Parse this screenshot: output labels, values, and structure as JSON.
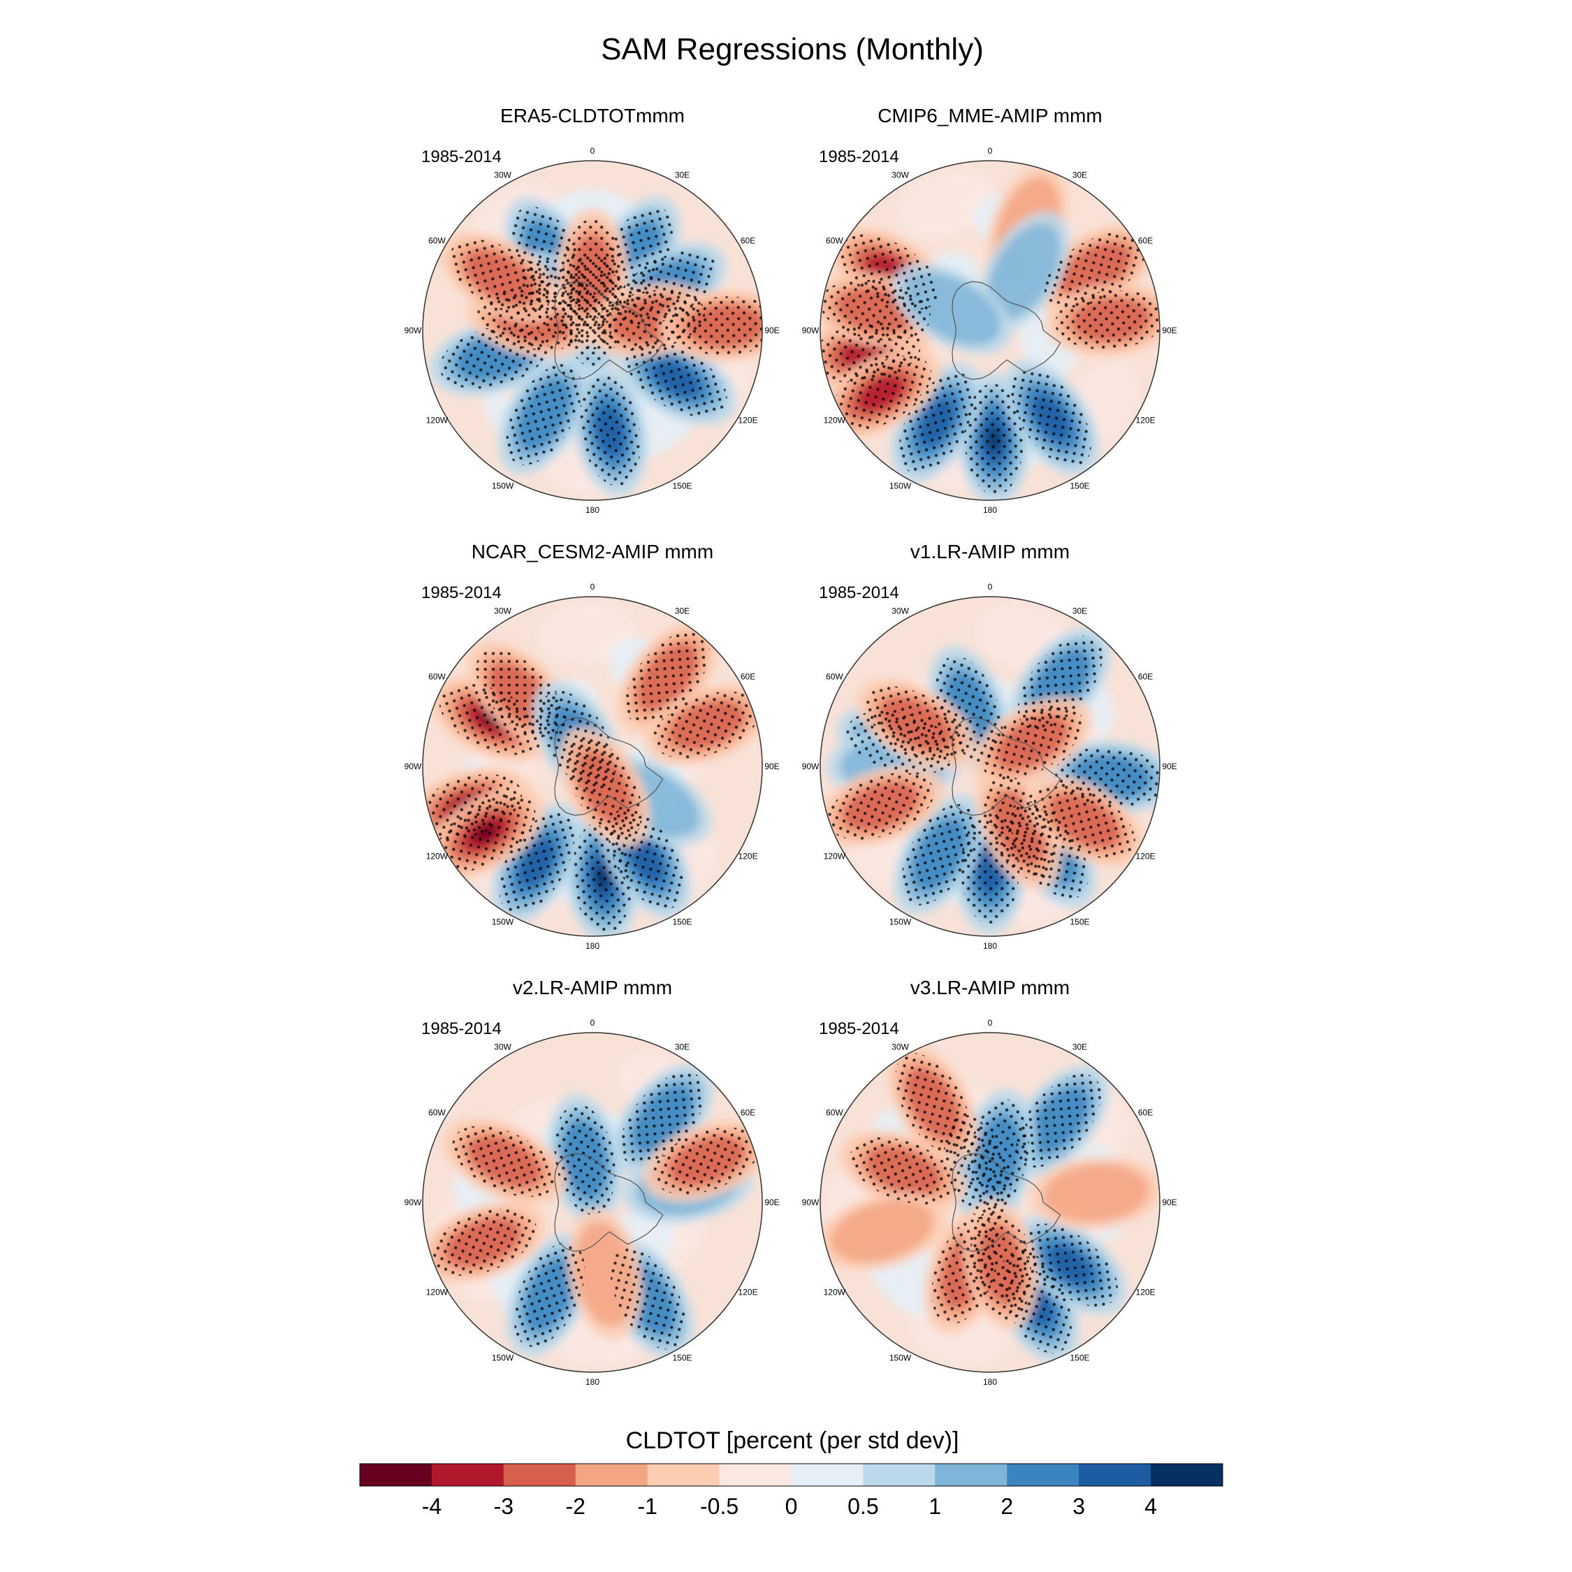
{
  "chart_data": {
    "type": "heatmap",
    "title": "SAM Regressions (Monthly)",
    "projection": "south-polar-stereographic",
    "longitude_labels": [
      "0",
      "30E",
      "60E",
      "90E",
      "120E",
      "150E",
      "180",
      "150W",
      "120W",
      "90W",
      "60W",
      "30W"
    ],
    "panels": [
      {
        "title": "ERA5-CLDTOTmmm",
        "period": "1985-2014",
        "anomalies": [
          {
            "lon": 120,
            "lat": -50,
            "sign": "positive",
            "magnitude": 3
          },
          {
            "lon": 170,
            "lat": -48,
            "sign": "positive",
            "magnitude": 3
          },
          {
            "lon": -150,
            "lat": -50,
            "sign": "positive",
            "magnitude": 2
          },
          {
            "lon": -105,
            "lat": -48,
            "sign": "positive",
            "magnitude": 2
          },
          {
            "lon": 30,
            "lat": -55,
            "sign": "positive",
            "magnitude": 2
          },
          {
            "lon": 60,
            "lat": -55,
            "sign": "positive",
            "magnitude": 2
          },
          {
            "lon": -30,
            "lat": -55,
            "sign": "positive",
            "magnitude": 2
          },
          {
            "lon": 0,
            "lat": -82,
            "sign": "positive",
            "magnitude": 3
          },
          {
            "lon": -45,
            "lat": -75,
            "sign": "positive",
            "magnitude": 4
          },
          {
            "lon": -80,
            "lat": -65,
            "sign": "negative",
            "magnitude": 2
          },
          {
            "lon": 0,
            "lat": -67,
            "sign": "negative",
            "magnitude": 2
          },
          {
            "lon": 80,
            "lat": -66,
            "sign": "negative",
            "magnitude": 2
          },
          {
            "lon": -60,
            "lat": -46,
            "sign": "negative",
            "magnitude": 2
          },
          {
            "lon": 88,
            "lat": -35,
            "sign": "negative",
            "magnitude": 2
          }
        ]
      },
      {
        "title": "CMIP6_MME-AMIP  mmm",
        "period": "1985-2014",
        "anomalies": [
          {
            "lon": 178,
            "lat": -45,
            "sign": "positive",
            "magnitude": 4
          },
          {
            "lon": 145,
            "lat": -46,
            "sign": "positive",
            "magnitude": 3
          },
          {
            "lon": -150,
            "lat": -46,
            "sign": "positive",
            "magnitude": 3
          },
          {
            "lon": -60,
            "lat": -42,
            "sign": "negative",
            "magnitude": 3
          },
          {
            "lon": -100,
            "lat": -38,
            "sign": "negative",
            "magnitude": 3
          },
          {
            "lon": -120,
            "lat": -38,
            "sign": "negative",
            "magnitude": 3
          },
          {
            "lon": -80,
            "lat": -42,
            "sign": "negative",
            "magnitude": 2
          },
          {
            "lon": 60,
            "lat": -40,
            "sign": "negative",
            "magnitude": 2
          },
          {
            "lon": 85,
            "lat": -40,
            "sign": "negative",
            "magnitude": 2
          },
          {
            "lon": 20,
            "lat": -45,
            "sign": "negative",
            "magnitude": 1
          },
          {
            "lon": 30,
            "lat": -62,
            "sign": "positive",
            "magnitude": 1
          },
          {
            "lon": -60,
            "lat": -72,
            "sign": "positive",
            "magnitude": 1
          }
        ]
      },
      {
        "title": "NCAR_CESM2-AMIP  mmm",
        "period": "1985-2014",
        "anomalies": [
          {
            "lon": 175,
            "lat": -44,
            "sign": "positive",
            "magnitude": 4
          },
          {
            "lon": 150,
            "lat": -46,
            "sign": "positive",
            "magnitude": 3
          },
          {
            "lon": -150,
            "lat": -44,
            "sign": "positive",
            "magnitude": 3
          },
          {
            "lon": -108,
            "lat": -36,
            "sign": "negative",
            "magnitude": 4
          },
          {
            "lon": -122,
            "lat": -38,
            "sign": "negative",
            "magnitude": 4
          },
          {
            "lon": -65,
            "lat": -44,
            "sign": "negative",
            "magnitude": 4
          },
          {
            "lon": -45,
            "lat": -48,
            "sign": "negative",
            "magnitude": 2
          },
          {
            "lon": 40,
            "lat": -42,
            "sign": "negative",
            "magnitude": 2
          },
          {
            "lon": 70,
            "lat": -40,
            "sign": "negative",
            "magnitude": 2
          },
          {
            "lon": 120,
            "lat": -62,
            "sign": "positive",
            "magnitude": 1
          },
          {
            "lon": -30,
            "lat": -78,
            "sign": "positive",
            "magnitude": 2
          },
          {
            "lon": 150,
            "lat": -80,
            "sign": "negative",
            "magnitude": 2
          }
        ]
      },
      {
        "title": "v1.LR-AMIP  mmm",
        "period": "1985-2014",
        "anomalies": [
          {
            "lon": 180,
            "lat": -48,
            "sign": "positive",
            "magnitude": 3
          },
          {
            "lon": 145,
            "lat": -48,
            "sign": "positive",
            "magnitude": 2
          },
          {
            "lon": -150,
            "lat": -48,
            "sign": "positive",
            "magnitude": 2
          },
          {
            "lon": 40,
            "lat": -45,
            "sign": "positive",
            "magnitude": 2
          },
          {
            "lon": 95,
            "lat": -40,
            "sign": "positive",
            "magnitude": 2
          },
          {
            "lon": -75,
            "lat": -52,
            "sign": "positive",
            "magnitude": 2
          },
          {
            "lon": -90,
            "lat": -50,
            "sign": "positive",
            "magnitude": 1
          },
          {
            "lon": -20,
            "lat": -65,
            "sign": "positive",
            "magnitude": 2
          },
          {
            "lon": -60,
            "lat": -55,
            "sign": "negative",
            "magnitude": 2
          },
          {
            "lon": -110,
            "lat": -42,
            "sign": "negative",
            "magnitude": 2
          },
          {
            "lon": 155,
            "lat": -62,
            "sign": "negative",
            "magnitude": 2
          },
          {
            "lon": 60,
            "lat": -70,
            "sign": "negative",
            "magnitude": 2
          },
          {
            "lon": 120,
            "lat": -45,
            "sign": "negative",
            "magnitude": 2
          }
        ]
      },
      {
        "title": "v2.LR-AMIP  mmm",
        "period": "1985-2014",
        "anomalies": [
          {
            "lon": 150,
            "lat": -44,
            "sign": "positive",
            "magnitude": 2
          },
          {
            "lon": -155,
            "lat": -48,
            "sign": "positive",
            "magnitude": 2
          },
          {
            "lon": 40,
            "lat": -45,
            "sign": "positive",
            "magnitude": 2
          },
          {
            "lon": 80,
            "lat": -50,
            "sign": "positive",
            "magnitude": 1
          },
          {
            "lon": -10,
            "lat": -72,
            "sign": "positive",
            "magnitude": 2
          },
          {
            "lon": -65,
            "lat": -50,
            "sign": "negative",
            "magnitude": 2
          },
          {
            "lon": -110,
            "lat": -42,
            "sign": "negative",
            "magnitude": 2
          },
          {
            "lon": 170,
            "lat": -60,
            "sign": "negative",
            "magnitude": 1
          },
          {
            "lon": 70,
            "lat": -40,
            "sign": "negative",
            "magnitude": 2
          }
        ]
      },
      {
        "title": "v3.LR-AMIP  mmm",
        "period": "1985-2014",
        "anomalies": [
          {
            "lon": 155,
            "lat": -45,
            "sign": "positive",
            "magnitude": 3
          },
          {
            "lon": 128,
            "lat": -48,
            "sign": "positive",
            "magnitude": 3
          },
          {
            "lon": 40,
            "lat": -46,
            "sign": "positive",
            "magnitude": 2
          },
          {
            "lon": -20,
            "lat": -75,
            "sign": "positive",
            "magnitude": 3
          },
          {
            "lon": 10,
            "lat": -70,
            "sign": "positive",
            "magnitude": 2
          },
          {
            "lon": -70,
            "lat": -52,
            "sign": "negative",
            "magnitude": 2
          },
          {
            "lon": -105,
            "lat": -44,
            "sign": "negative",
            "magnitude": 1
          },
          {
            "lon": -160,
            "lat": -60,
            "sign": "negative",
            "magnitude": 2
          },
          {
            "lon": 170,
            "lat": -64,
            "sign": "negative",
            "magnitude": 2
          },
          {
            "lon": 85,
            "lat": -46,
            "sign": "negative",
            "magnitude": 1
          },
          {
            "lon": -30,
            "lat": -43,
            "sign": "negative",
            "magnitude": 2
          }
        ]
      }
    ],
    "colorbar": {
      "title": "CLDTOT [percent (per std dev)]",
      "levels": [
        "-4",
        "-3",
        "-2",
        "-1",
        "-0.5",
        "0",
        "0.5",
        "1",
        "2",
        "3",
        "4"
      ],
      "colors": [
        "#67001f",
        "#b2182b",
        "#d6604d",
        "#f4a582",
        "#fdcdb3",
        "#fbe8e2",
        "#e6eff6",
        "#bcd9eb",
        "#7fb5d8",
        "#3a85bf",
        "#1c5ca3",
        "#053061"
      ]
    }
  }
}
